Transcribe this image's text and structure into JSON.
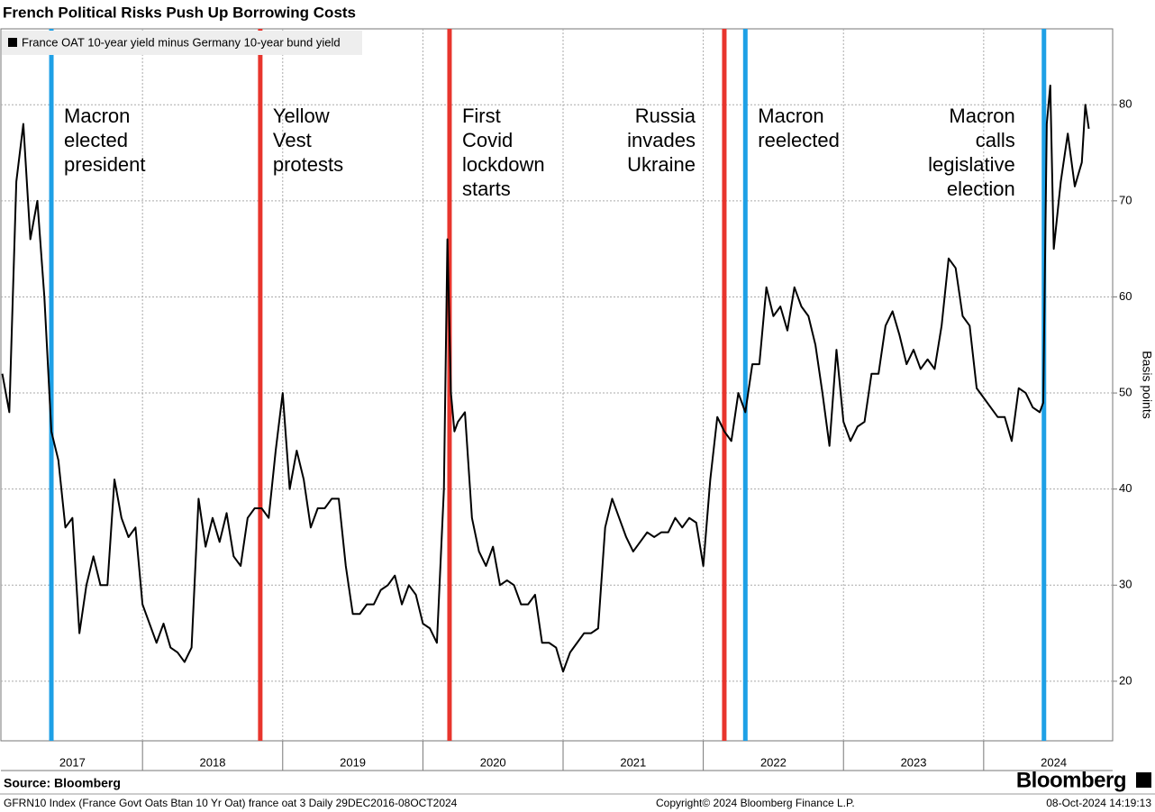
{
  "chart_data": {
    "type": "line",
    "title": "French Political Risks Push Up Borrowing Costs",
    "y_label": "Basis points",
    "source": "Source: Bloomberg",
    "footnote": "GFRN10 Index (France Govt Oats Btan 10 Yr Oat) france oat 3  Daily 29DEC2016-08OCT2024",
    "copyright": "Copyright© 2024 Bloomberg Finance L.P.",
    "timestamp": "08-Oct-2024 14:19:13",
    "brand": "Bloomberg",
    "legend": "top-left",
    "grid": true,
    "xlim": [
      2016.99,
      2024.92
    ],
    "xticks": [
      {
        "value": 2017.5,
        "label": "2017"
      },
      {
        "value": 2018.5,
        "label": "2018"
      },
      {
        "value": 2019.5,
        "label": "2019"
      },
      {
        "value": 2020.5,
        "label": "2020"
      },
      {
        "value": 2021.5,
        "label": "2021"
      },
      {
        "value": 2022.5,
        "label": "2022"
      },
      {
        "value": 2023.5,
        "label": "2023"
      },
      {
        "value": 2024.5,
        "label": "2024"
      }
    ],
    "xgrid": [
      2018,
      2019,
      2020,
      2021,
      2022,
      2023,
      2024
    ],
    "ylim": [
      13.8,
      87.9
    ],
    "yticks": [
      20,
      30,
      40,
      50,
      60,
      70,
      80
    ],
    "x": [
      2017,
      2017.05,
      2017.1,
      2017.15,
      2017.2,
      2017.25,
      2017.3,
      2017.35,
      2017.4,
      2017.45,
      2017.5,
      2017.55,
      2017.6,
      2017.65,
      2017.7,
      2017.75,
      2017.8,
      2017.85,
      2017.9,
      2017.95,
      2018,
      2018.05,
      2018.1,
      2018.15,
      2018.2,
      2018.25,
      2018.3,
      2018.35,
      2018.4,
      2018.45,
      2018.5,
      2018.55,
      2018.6,
      2018.65,
      2018.7,
      2018.75,
      2018.8,
      2018.85,
      2018.9,
      2018.95,
      2019,
      2019.05,
      2019.1,
      2019.15,
      2019.2,
      2019.25,
      2019.3,
      2019.35,
      2019.4,
      2019.45,
      2019.5,
      2019.55,
      2019.6,
      2019.65,
      2019.7,
      2019.75,
      2019.8,
      2019.85,
      2019.9,
      2019.95,
      2020,
      2020.05,
      2020.1,
      2020.15,
      2020.175,
      2020.2,
      2020.225,
      2020.25,
      2020.3,
      2020.35,
      2020.4,
      2020.45,
      2020.5,
      2020.55,
      2020.6,
      2020.65,
      2020.7,
      2020.75,
      2020.8,
      2020.85,
      2020.9,
      2020.95,
      2021,
      2021.05,
      2021.1,
      2021.15,
      2021.2,
      2021.25,
      2021.3,
      2021.35,
      2021.4,
      2021.45,
      2021.5,
      2021.55,
      2021.6,
      2021.65,
      2021.7,
      2021.75,
      2021.8,
      2021.85,
      2021.9,
      2021.95,
      2022,
      2022.05,
      2022.1,
      2022.15,
      2022.2,
      2022.25,
      2022.3,
      2022.35,
      2022.4,
      2022.45,
      2022.5,
      2022.55,
      2022.6,
      2022.65,
      2022.7,
      2022.75,
      2022.8,
      2022.85,
      2022.9,
      2022.95,
      2023,
      2023.05,
      2023.1,
      2023.15,
      2023.2,
      2023.25,
      2023.3,
      2023.35,
      2023.4,
      2023.45,
      2023.5,
      2023.55,
      2023.6,
      2023.65,
      2023.7,
      2023.75,
      2023.8,
      2023.85,
      2023.9,
      2023.95,
      2024,
      2024.05,
      2024.1,
      2024.15,
      2024.2,
      2024.25,
      2024.3,
      2024.35,
      2024.4,
      2024.425,
      2024.45,
      2024.475,
      2024.5,
      2024.55,
      2024.6,
      2024.65,
      2024.7,
      2024.725,
      2024.75
    ],
    "series": [
      {
        "name": "France OAT 10-year yield minus Germany 10-year bund yield",
        "color": "#000000",
        "values": [
          52,
          48,
          72,
          78,
          66,
          70,
          60,
          46,
          43,
          36,
          37,
          25,
          30,
          33,
          30,
          30,
          41,
          37,
          35,
          36,
          28,
          26,
          24,
          26,
          23.5,
          23,
          22,
          23.5,
          39,
          34,
          37,
          34.5,
          37.5,
          33,
          32,
          37,
          38,
          38,
          37,
          44,
          50,
          40,
          44,
          41,
          36,
          38,
          38,
          39,
          39,
          32,
          27,
          27,
          28,
          28,
          29.5,
          30,
          31,
          28,
          30,
          29,
          26,
          25.5,
          24,
          40,
          66,
          50,
          46,
          47,
          48,
          37,
          33.5,
          32,
          34,
          30,
          30.5,
          30,
          28,
          28,
          29,
          24,
          24,
          23.5,
          21,
          23,
          24,
          25,
          25,
          25.5,
          36,
          39,
          37,
          35,
          33.5,
          34.5,
          35.5,
          35,
          35.5,
          35.5,
          37,
          36,
          37,
          36.5,
          32,
          41,
          47.5,
          46,
          45,
          50,
          48,
          53,
          53,
          61,
          58,
          59,
          56.5,
          61,
          59,
          58,
          55,
          50,
          44.5,
          54.5,
          47,
          45,
          46.5,
          47,
          52,
          52,
          57,
          58.5,
          56,
          53,
          54.5,
          52.5,
          53.5,
          52.5,
          57,
          64,
          63,
          58,
          57,
          50.5,
          49.5,
          48.5,
          47.5,
          47.5,
          45,
          50.5,
          50,
          48.5,
          48,
          49,
          78,
          82,
          65,
          72,
          77,
          71.5,
          74,
          80,
          77.5
        ]
      }
    ],
    "annotations": [
      {
        "x": 2017.35,
        "color": "#1ea0e6",
        "align": "left",
        "lines": [
          "Macron",
          "elected",
          "president"
        ]
      },
      {
        "x": 2018.84,
        "color": "#e8352d",
        "align": "left",
        "lines": [
          "Yellow",
          "Vest",
          "protests"
        ]
      },
      {
        "x": 2020.19,
        "color": "#e8352d",
        "align": "left",
        "lines": [
          "First",
          "Covid",
          "lockdown",
          "starts"
        ]
      },
      {
        "x": 2022.15,
        "color": "#e8352d",
        "align": "right",
        "lines": [
          "Russia",
          "invades",
          "Ukraine"
        ]
      },
      {
        "x": 2022.3,
        "color": "#1ea0e6",
        "align": "left",
        "lines": [
          "Macron",
          "reelected"
        ]
      },
      {
        "x": 2024.43,
        "color": "#1ea0e6",
        "align": "right",
        "lines": [
          "Macron",
          "calls",
          "legislative",
          "election"
        ]
      }
    ]
  }
}
